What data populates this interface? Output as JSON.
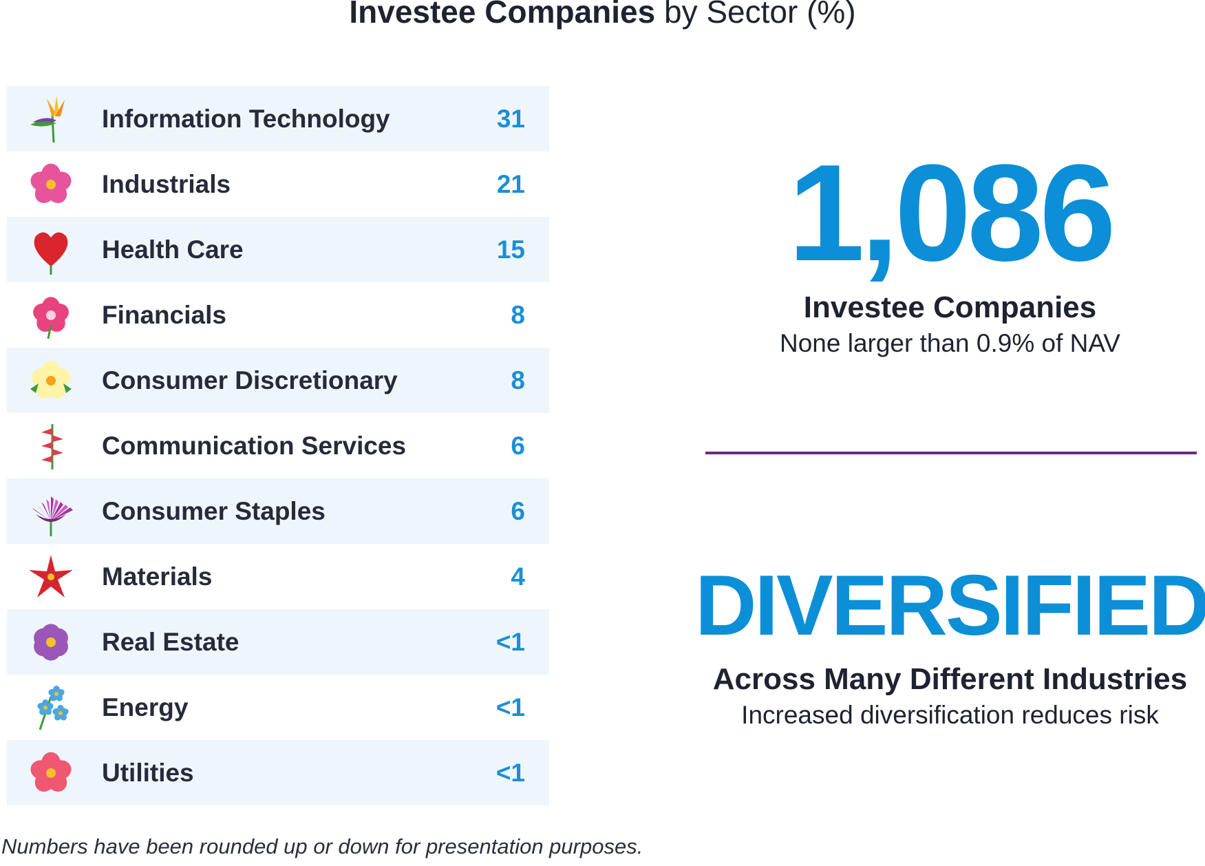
{
  "header": {
    "title_bold": "Investee Companies",
    "title_rest": "by Sector (%)"
  },
  "chart_data": {
    "type": "table",
    "title": "Investee Companies by Sector (%)",
    "columns": [
      "Sector",
      "%"
    ],
    "rows": [
      {
        "sector": "Information Technology",
        "value": "31",
        "icon": "bird-of-paradise-icon",
        "color": "#f2a31b"
      },
      {
        "sector": "Industrials",
        "value": "21",
        "icon": "hibiscus-pink-icon",
        "color": "#e6559c"
      },
      {
        "sector": "Health Care",
        "value": "15",
        "icon": "anthurium-icon",
        "color": "#d9252b"
      },
      {
        "sector": "Financials",
        "value": "8",
        "icon": "orchid-icon",
        "color": "#e8437f"
      },
      {
        "sector": "Consumer Discretionary",
        "value": "8",
        "icon": "plumeria-icon",
        "color": "#f7d63a"
      },
      {
        "sector": "Communication Services",
        "value": "6",
        "icon": "heliconia-icon",
        "color": "#e03b4d"
      },
      {
        "sector": "Consumer Staples",
        "value": "6",
        "icon": "protea-icon",
        "color": "#a5349a"
      },
      {
        "sector": "Materials",
        "value": "4",
        "icon": "lily-icon",
        "color": "#d32630"
      },
      {
        "sector": "Real Estate",
        "value": "<1",
        "icon": "violet-icon",
        "color": "#9b57b8"
      },
      {
        "sector": "Energy",
        "value": "<1",
        "icon": "forget-me-not-icon",
        "color": "#4aa7e0"
      },
      {
        "sector": "Utilities",
        "value": "<1",
        "icon": "hibiscus-coral-icon",
        "color": "#ef5870"
      }
    ]
  },
  "stats": {
    "count": "1,086",
    "count_label": "Investee Companies",
    "count_note": "None larger than 0.9% of NAV",
    "headline": "DIVERSIFIED",
    "headline_label": "Across Many Different Industries",
    "headline_note": "Increased diversification reduces risk"
  },
  "colors": {
    "accent_blue": "#0c8fd6",
    "value_blue": "#1a8fd3",
    "divider_purple": "#6b2a86",
    "row_shade": "#eef6fc"
  },
  "footnote": "Numbers have been rounded up or down for presentation purposes."
}
